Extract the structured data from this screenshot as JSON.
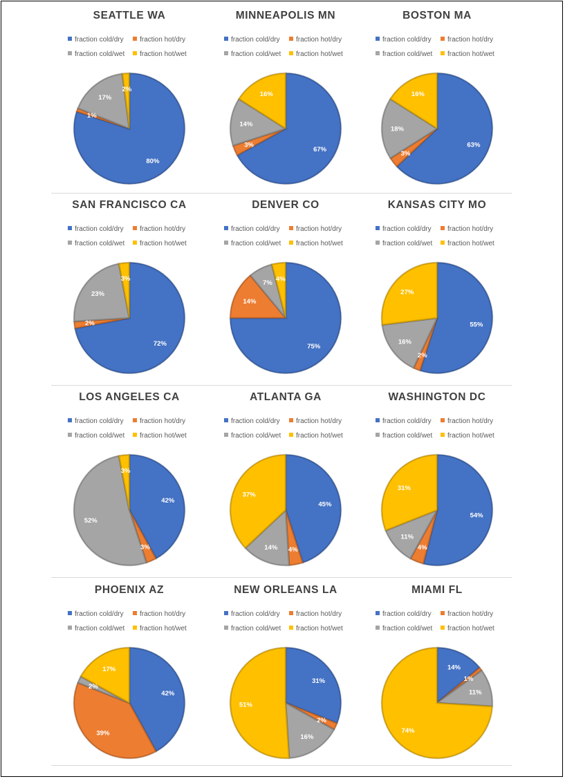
{
  "legend": {
    "labels": [
      "fraction cold/dry",
      "fraction hot/dry",
      "fraction cold/wet",
      "fraction hot/wet"
    ],
    "colors": [
      "#4472C4",
      "#ED7D31",
      "#A5A5A5",
      "#FFC000"
    ]
  },
  "chart_data": [
    {
      "type": "pie",
      "title": "SEATTLE WA",
      "categories": [
        "fraction cold/dry",
        "fraction hot/dry",
        "fraction cold/wet",
        "fraction hot/wet"
      ],
      "values": [
        80,
        1,
        17,
        2
      ],
      "labels": [
        "80%",
        "1%",
        "17%",
        "2%"
      ]
    },
    {
      "type": "pie",
      "title": "MINNEAPOLIS MN",
      "categories": [
        "fraction cold/dry",
        "fraction hot/dry",
        "fraction cold/wet",
        "fraction hot/wet"
      ],
      "values": [
        67,
        3,
        14,
        16
      ],
      "labels": [
        "67%",
        "3%",
        "14%",
        "16%"
      ]
    },
    {
      "type": "pie",
      "title": "BOSTON MA",
      "categories": [
        "fraction cold/dry",
        "fraction hot/dry",
        "fraction cold/wet",
        "fraction hot/wet"
      ],
      "values": [
        63,
        3,
        18,
        16
      ],
      "labels": [
        "63%",
        "3%",
        "18%",
        "16%"
      ]
    },
    {
      "type": "pie",
      "title": "SAN FRANCISCO CA",
      "categories": [
        "fraction cold/dry",
        "fraction hot/dry",
        "fraction cold/wet",
        "fraction hot/wet"
      ],
      "values": [
        72,
        2,
        23,
        3
      ],
      "labels": [
        "72%",
        "2%",
        "23%",
        "3%"
      ]
    },
    {
      "type": "pie",
      "title": "DENVER CO",
      "categories": [
        "fraction cold/dry",
        "fraction hot/dry",
        "fraction cold/wet",
        "fraction hot/wet"
      ],
      "values": [
        75,
        14,
        7,
        4
      ],
      "labels": [
        "75%",
        "14%",
        "7%",
        "4%"
      ]
    },
    {
      "type": "pie",
      "title": "KANSAS CITY MO",
      "categories": [
        "fraction cold/dry",
        "fraction hot/dry",
        "fraction cold/wet",
        "fraction hot/wet"
      ],
      "values": [
        55,
        2,
        16,
        27
      ],
      "labels": [
        "55%",
        "2%",
        "16%",
        "27%"
      ]
    },
    {
      "type": "pie",
      "title": "LOS ANGELES CA",
      "categories": [
        "fraction cold/dry",
        "fraction hot/dry",
        "fraction cold/wet",
        "fraction hot/wet"
      ],
      "values": [
        42,
        3,
        52,
        3
      ],
      "labels": [
        "42%",
        "3%",
        "52%",
        "3%"
      ]
    },
    {
      "type": "pie",
      "title": "ATLANTA GA",
      "categories": [
        "fraction cold/dry",
        "fraction hot/dry",
        "fraction cold/wet",
        "fraction hot/wet"
      ],
      "values": [
        45,
        4,
        14,
        37
      ],
      "labels": [
        "45%",
        "4%",
        "14%",
        "37%"
      ]
    },
    {
      "type": "pie",
      "title": "WASHINGTON DC",
      "categories": [
        "fraction cold/dry",
        "fraction hot/dry",
        "fraction cold/wet",
        "fraction hot/wet"
      ],
      "values": [
        54,
        4,
        11,
        31
      ],
      "labels": [
        "54%",
        "4%",
        "11%",
        "31%"
      ]
    },
    {
      "type": "pie",
      "title": "PHOENIX AZ",
      "categories": [
        "fraction cold/dry",
        "fraction hot/dry",
        "fraction cold/wet",
        "fraction hot/wet"
      ],
      "values": [
        42,
        39,
        2,
        17
      ],
      "labels": [
        "42%",
        "39%",
        "2%",
        "17%"
      ]
    },
    {
      "type": "pie",
      "title": "NEW ORLEANS LA",
      "categories": [
        "fraction cold/dry",
        "fraction hot/dry",
        "fraction cold/wet",
        "fraction hot/wet"
      ],
      "values": [
        31,
        2,
        16,
        51
      ],
      "labels": [
        "31%",
        "2%",
        "16%",
        "51%"
      ]
    },
    {
      "type": "pie",
      "title": "MIAMI FL",
      "categories": [
        "fraction cold/dry",
        "fraction hot/dry",
        "fraction cold/wet",
        "fraction hot/wet"
      ],
      "values": [
        14,
        1,
        11,
        74
      ],
      "labels": [
        "14%",
        "1%",
        "11%",
        "74%"
      ]
    }
  ]
}
